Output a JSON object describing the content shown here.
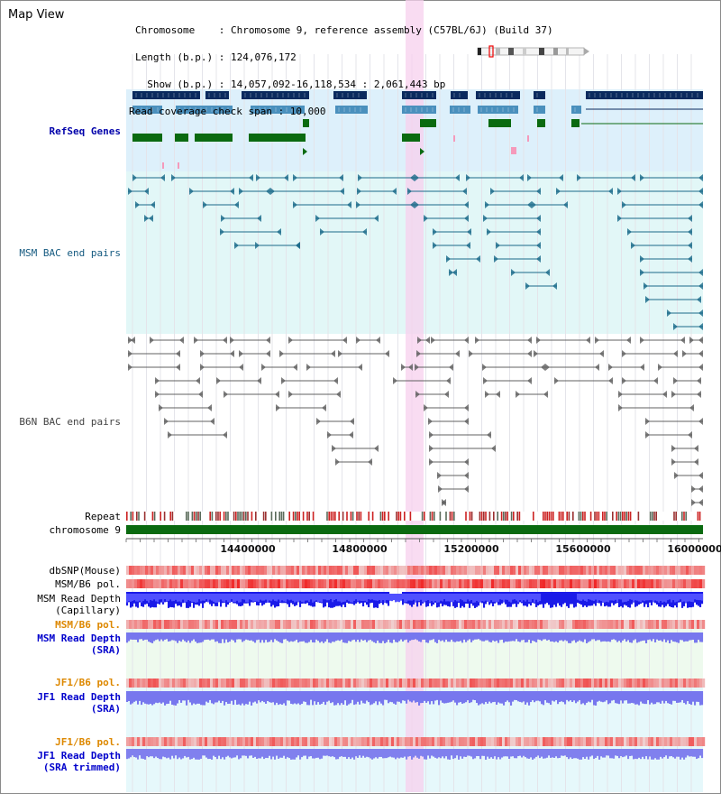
{
  "view": {
    "title": "Map View",
    "chromosome_line": "Chromosome    : Chromosome 9, reference assembly (C57BL/6J) (Build 37)",
    "length_line": "Length (b.p.) : 124,076,172",
    "show_line": "  Show (b.p.) : 14,057,092-16,118,534 : 2,061,443 bp",
    "coverage_line": "Read coverage check span : 10,000",
    "chromosome_ideogram_icon": "chromosome-ideogram-icon"
  },
  "axis": {
    "ticks": [
      "14400000",
      "14800000",
      "15200000",
      "15600000",
      "16000000"
    ],
    "track_label": "chromosome 9",
    "repeat_label": "Repeat"
  },
  "tracks": {
    "refseq": "RefSeq Genes",
    "msm_bac": "MSM BAC end pairs",
    "b6n_bac": "B6N BAC end pairs",
    "dbsnp": "dbSNP(Mouse)",
    "msm_b6_pol": "MSM/B6 pol.",
    "msm_depth_cap_1": "MSM Read Depth",
    "msm_depth_cap_2": "(Capillary)",
    "msm_b6_pol_sra": "MSM/B6 pol.",
    "msm_depth_sra_1": "MSM Read Depth",
    "msm_depth_sra_2": "(SRA)",
    "jf1_b6_pol": "JF1/B6 pol.",
    "jf1_depth_1": "JF1 Read Depth",
    "jf1_depth_2": "(SRA)",
    "jf1_b6_pol_trim": "JF1/B6 pol.",
    "jf1_depth_trim_1": "JF1 Read Depth",
    "jf1_depth_trim_2": "(SRA trimmed)"
  },
  "colors": {
    "refseq_bg": "#ddf0fb",
    "msm_bg": "#e2f7f7",
    "highlight": "#f7d0ee",
    "navy": "#0a2a5e",
    "steel": "#4a90bd",
    "green": "#0a6a10",
    "teal": "#1a6a8a",
    "gray": "#606060",
    "depth_blue": "#1a1ae8",
    "depth_purple": "#7777ee",
    "red": "#e83030"
  }
}
